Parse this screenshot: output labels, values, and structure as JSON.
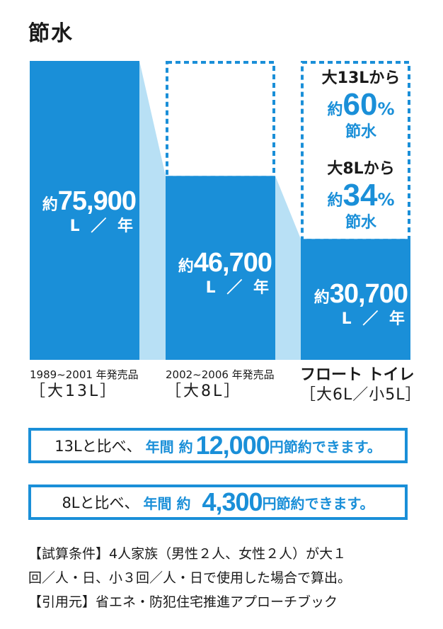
{
  "title": "節水",
  "colors": {
    "bar": "#1a8fd8",
    "connector": "#b8e0f5",
    "accent": "#1a8fd8",
    "text": "#1a1a1a"
  },
  "chart_data": {
    "type": "bar",
    "categories": [
      "1989~2001 年発売品 [大13L]",
      "2002~2006 年発売品 [大8L]",
      "フロート トイレ [大6L/小5L]"
    ],
    "values": [
      75900,
      46700,
      30700
    ],
    "ylim": [
      0,
      75900
    ],
    "unit": "L/年",
    "grid": false
  },
  "bars": [
    {
      "prefix": "約",
      "value_text": "75,900",
      "unit": "L ／ 年"
    },
    {
      "prefix": "約",
      "value_text": "46,700",
      "unit": "L ／ 年"
    },
    {
      "prefix": "約",
      "value_text": "30,700",
      "unit": "L ／ 年"
    }
  ],
  "categories": [
    {
      "line1": "1989~2001 年発売品",
      "line2": "［大13L］"
    },
    {
      "line1": "2002~2006 年発売品",
      "line2": "［大8L］"
    },
    {
      "line1": "フロート トイレ",
      "line2": "［大6L／小5L］"
    }
  ],
  "callouts": [
    {
      "from": "大13Lから",
      "prefix": "約",
      "pct": "60",
      "sign": "%",
      "save": "節水"
    },
    {
      "from": "大8Lから",
      "prefix": "約",
      "pct": "34",
      "sign": "%",
      "save": "節水"
    }
  ],
  "summaries": [
    {
      "lead": "13Lと比べ、",
      "year": "年間 約",
      "amount": "12,000",
      "tail": "円節約できます。"
    },
    {
      "lead": "8Lと比べ、",
      "year": "年間 約",
      "amount": "4,300",
      "tail": "円節約できます。"
    }
  ],
  "notes": [
    "【試算条件】4人家族（男性２人、女性２人）が大１",
    "回／人・日、小３回／人・日で使用した場合で算出。",
    "【引用元】省エネ・防犯住宅推進アプローチブック"
  ]
}
